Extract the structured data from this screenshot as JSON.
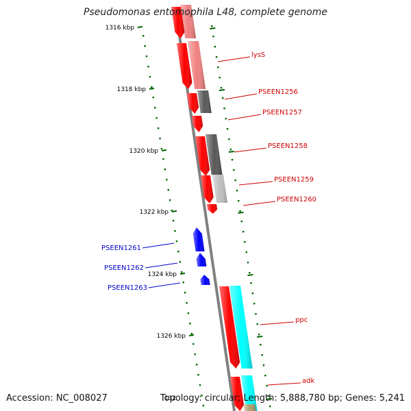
{
  "map_title": "Pseudomonas entomophila L48, complete genome",
  "accession_text": "Accession: NC_008027",
  "stats_text": "Topology: circular; Length: 5,888,780 bp; Genes: 5,241",
  "colors": {
    "forward_gene": "#ff0000",
    "reverse_gene": "#0000ff",
    "cog_dark_gray": "#595959",
    "cog_light_gray": "#bfbfbf",
    "cog_cyan": "#00ffff",
    "cog_light_red": "#f08080",
    "backbone": "#808080",
    "tick": "#006400",
    "forward_label": "#cc0000",
    "reverse_label": "#0000cc"
  },
  "scale_labels": [
    "1316 kbp",
    "1318 kbp",
    "1320 kbp",
    "1322 kbp",
    "1324 kbp",
    "1326 kbp",
    "132"
  ],
  "forward_gene_labels": [
    "lysS",
    "PSEEN1256",
    "PSEEN1257",
    "PSEEN1258",
    "PSEEN1259",
    "PSEEN1260",
    "ppc",
    "adk"
  ],
  "reverse_gene_labels": [
    "PSEEN1261",
    "PSEEN1262",
    "PSEEN1263"
  ]
}
